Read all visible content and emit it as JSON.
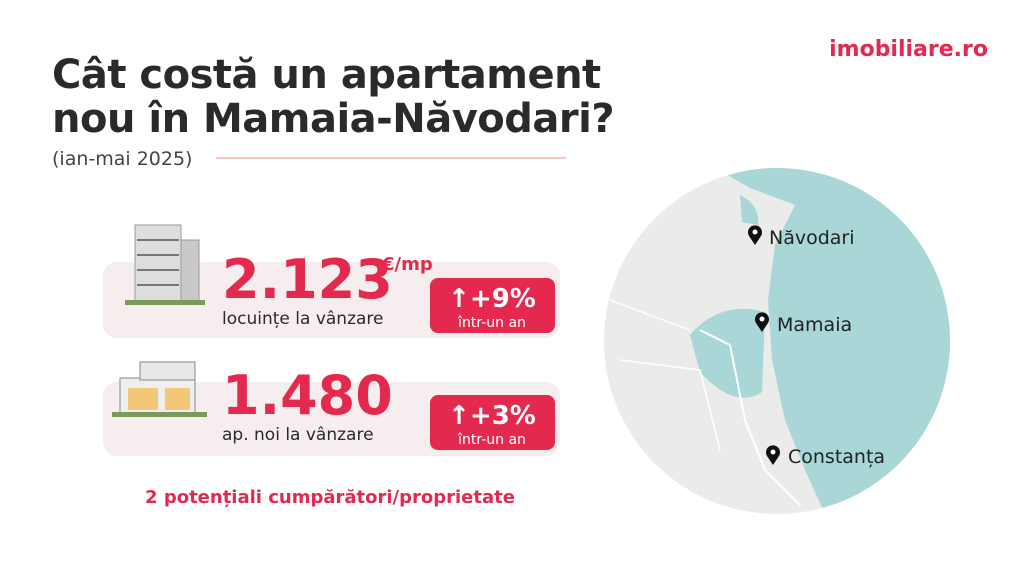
{
  "logo": "imobiliare.ro",
  "header": {
    "title_lines": [
      "Cât costă un apartament",
      "nou în Mamaia-Năvodari?"
    ],
    "period": "(ian-mai 2025)"
  },
  "cards": [
    {
      "value": "2.123",
      "unit": "€/mp",
      "label": "locuințe la vânzare",
      "change": "↑+9%",
      "change_label": "într-un an"
    },
    {
      "value": "1.480",
      "label": "ap. noi la vânzare",
      "change": "↑+3%",
      "change_label": "într-un an"
    }
  ],
  "footer": "2 potențiali cumpărători/proprietate",
  "map": {
    "places": [
      "Năvodari",
      "Mamaia",
      "Constanța"
    ]
  }
}
